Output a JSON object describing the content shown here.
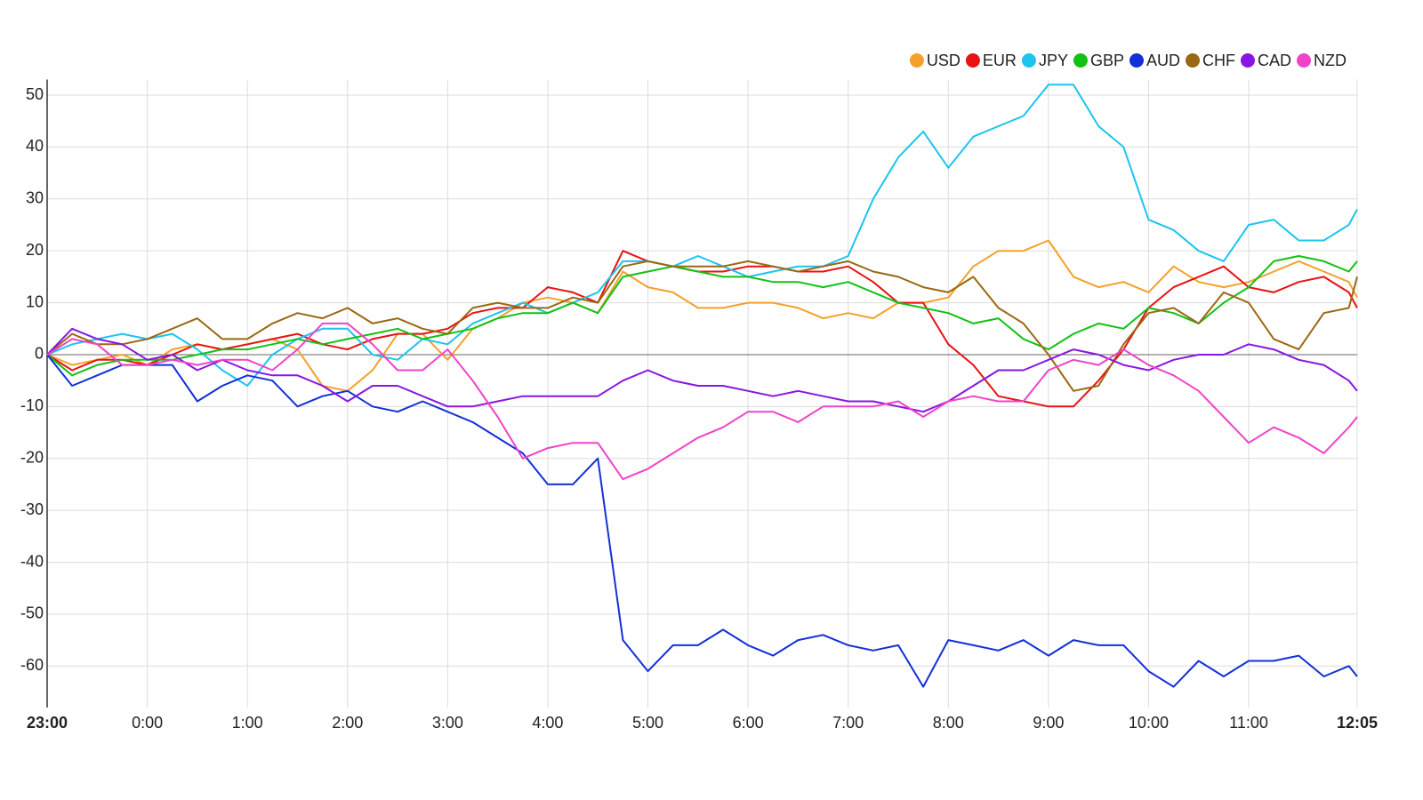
{
  "chart_data": {
    "type": "line",
    "x": [
      0,
      15,
      30,
      45,
      60,
      75,
      90,
      105,
      120,
      135,
      150,
      165,
      180,
      195,
      210,
      225,
      240,
      255,
      270,
      285,
      300,
      315,
      330,
      345,
      360,
      375,
      390,
      405,
      420,
      435,
      450,
      465,
      480,
      495,
      510,
      525,
      540,
      555,
      570,
      585,
      600,
      615,
      630,
      645,
      660,
      675,
      690,
      705,
      720,
      735,
      750,
      765,
      780,
      785
    ],
    "xlim": [
      0,
      785
    ],
    "xticks": [
      {
        "value": 0,
        "label": "23:00"
      },
      {
        "value": 60,
        "label": "0:00"
      },
      {
        "value": 120,
        "label": "1:00"
      },
      {
        "value": 180,
        "label": "2:00"
      },
      {
        "value": 240,
        "label": "3:00"
      },
      {
        "value": 300,
        "label": "4:00"
      },
      {
        "value": 360,
        "label": "5:00"
      },
      {
        "value": 420,
        "label": "6:00"
      },
      {
        "value": 480,
        "label": "7:00"
      },
      {
        "value": 540,
        "label": "8:00"
      },
      {
        "value": 600,
        "label": "9:00"
      },
      {
        "value": 660,
        "label": "10:00"
      },
      {
        "value": 720,
        "label": "11:00"
      },
      {
        "value": 785,
        "label": "12:05"
      }
    ],
    "ylim": [
      -68,
      53
    ],
    "yticks": [
      -60,
      -50,
      -40,
      -30,
      -20,
      -10,
      0,
      10,
      20,
      30,
      40,
      50
    ],
    "grid": true,
    "legend": "top-right",
    "series": [
      {
        "name": "USD",
        "color": "#f5a02a",
        "values": [
          0,
          -2,
          -1,
          0,
          -2,
          1,
          2,
          1,
          2,
          3,
          1,
          -6,
          -7,
          -3,
          4,
          4,
          -1,
          5,
          7,
          10,
          11,
          10,
          8,
          16,
          13,
          12,
          9,
          9,
          10,
          10,
          9,
          7,
          8,
          7,
          10,
          10,
          11,
          17,
          20,
          20,
          22,
          15,
          13,
          14,
          12,
          17,
          14,
          13,
          14,
          16,
          18,
          16,
          14,
          11
        ]
      },
      {
        "name": "EUR",
        "color": "#e81212",
        "values": [
          0,
          -3,
          -1,
          -1,
          -2,
          0,
          2,
          1,
          2,
          3,
          4,
          2,
          1,
          3,
          4,
          4,
          5,
          8,
          9,
          9,
          13,
          12,
          10,
          20,
          18,
          17,
          16,
          16,
          17,
          17,
          16,
          16,
          17,
          14,
          10,
          10,
          2,
          -2,
          -8,
          -9,
          -10,
          -10,
          -5,
          1,
          9,
          13,
          15,
          17,
          13,
          12,
          14,
          15,
          12,
          9
        ]
      },
      {
        "name": "JPY",
        "color": "#1cc4ee",
        "values": [
          0,
          2,
          3,
          4,
          3,
          4,
          1,
          -3,
          -6,
          0,
          3,
          5,
          5,
          0,
          -1,
          3,
          2,
          6,
          8,
          10,
          8,
          10,
          12,
          18,
          18,
          17,
          19,
          17,
          15,
          16,
          17,
          17,
          19,
          30,
          38,
          43,
          36,
          42,
          44,
          46,
          52,
          52,
          44,
          40,
          26,
          24,
          20,
          18,
          25,
          26,
          22,
          22,
          25,
          28
        ]
      },
      {
        "name": "GBP",
        "color": "#12c212",
        "values": [
          0,
          -4,
          -2,
          -1,
          -1,
          -1,
          0,
          1,
          1,
          2,
          3,
          2,
          3,
          4,
          5,
          3,
          4,
          5,
          7,
          8,
          8,
          10,
          8,
          15,
          16,
          17,
          16,
          15,
          15,
          14,
          14,
          13,
          14,
          12,
          10,
          9,
          8,
          6,
          7,
          3,
          1,
          4,
          6,
          5,
          9,
          8,
          6,
          10,
          13,
          18,
          19,
          18,
          16,
          18
        ]
      },
      {
        "name": "AUD",
        "color": "#1230d8",
        "values": [
          0,
          -6,
          -4,
          -2,
          -2,
          -2,
          -9,
          -6,
          -4,
          -5,
          -10,
          -8,
          -7,
          -10,
          -11,
          -9,
          -11,
          -13,
          -16,
          -19,
          -25,
          -25,
          -20,
          -55,
          -61,
          -56,
          -56,
          -53,
          -56,
          -58,
          -55,
          -54,
          -56,
          -57,
          -56,
          -64,
          -55,
          -56,
          -57,
          -55,
          -58,
          -55,
          -56,
          -56,
          -61,
          -64,
          -59,
          -62,
          -59,
          -59,
          -58,
          -62,
          -60,
          -62
        ]
      },
      {
        "name": "CHF",
        "color": "#9a6812",
        "values": [
          0,
          4,
          2,
          2,
          3,
          5,
          7,
          3,
          3,
          6,
          8,
          7,
          9,
          6,
          7,
          5,
          4,
          9,
          10,
          9,
          9,
          11,
          10,
          17,
          18,
          17,
          17,
          17,
          18,
          17,
          16,
          17,
          18,
          16,
          15,
          13,
          12,
          15,
          9,
          6,
          0,
          -7,
          -6,
          2,
          8,
          9,
          6,
          12,
          10,
          3,
          1,
          8,
          9,
          15
        ]
      },
      {
        "name": "CAD",
        "color": "#8a14e2",
        "values": [
          0,
          5,
          3,
          2,
          -1,
          0,
          -3,
          -1,
          -3,
          -4,
          -4,
          -6,
          -9,
          -6,
          -6,
          -8,
          -10,
          -10,
          -9,
          -8,
          -8,
          -8,
          -8,
          -5,
          -3,
          -5,
          -6,
          -6,
          -7,
          -8,
          -7,
          -8,
          -9,
          -9,
          -10,
          -11,
          -9,
          -6,
          -3,
          -3,
          -1,
          1,
          0,
          -2,
          -3,
          -1,
          0,
          0,
          2,
          1,
          -1,
          -2,
          -5,
          -7
        ]
      },
      {
        "name": "NZD",
        "color": "#f043c8",
        "values": [
          0,
          3,
          2,
          -2,
          -2,
          -1,
          -2,
          -1,
          -1,
          -3,
          1,
          6,
          6,
          2,
          -3,
          -3,
          1,
          -5,
          -12,
          -20,
          -18,
          -17,
          -17,
          -24,
          -22,
          -19,
          -16,
          -14,
          -11,
          -11,
          -13,
          -10,
          -10,
          -10,
          -9,
          -12,
          -9,
          -8,
          -9,
          -9,
          -3,
          -1,
          -2,
          1,
          -2,
          -4,
          -7,
          -12,
          -17,
          -14,
          -16,
          -19,
          -14,
          -12
        ]
      }
    ]
  }
}
